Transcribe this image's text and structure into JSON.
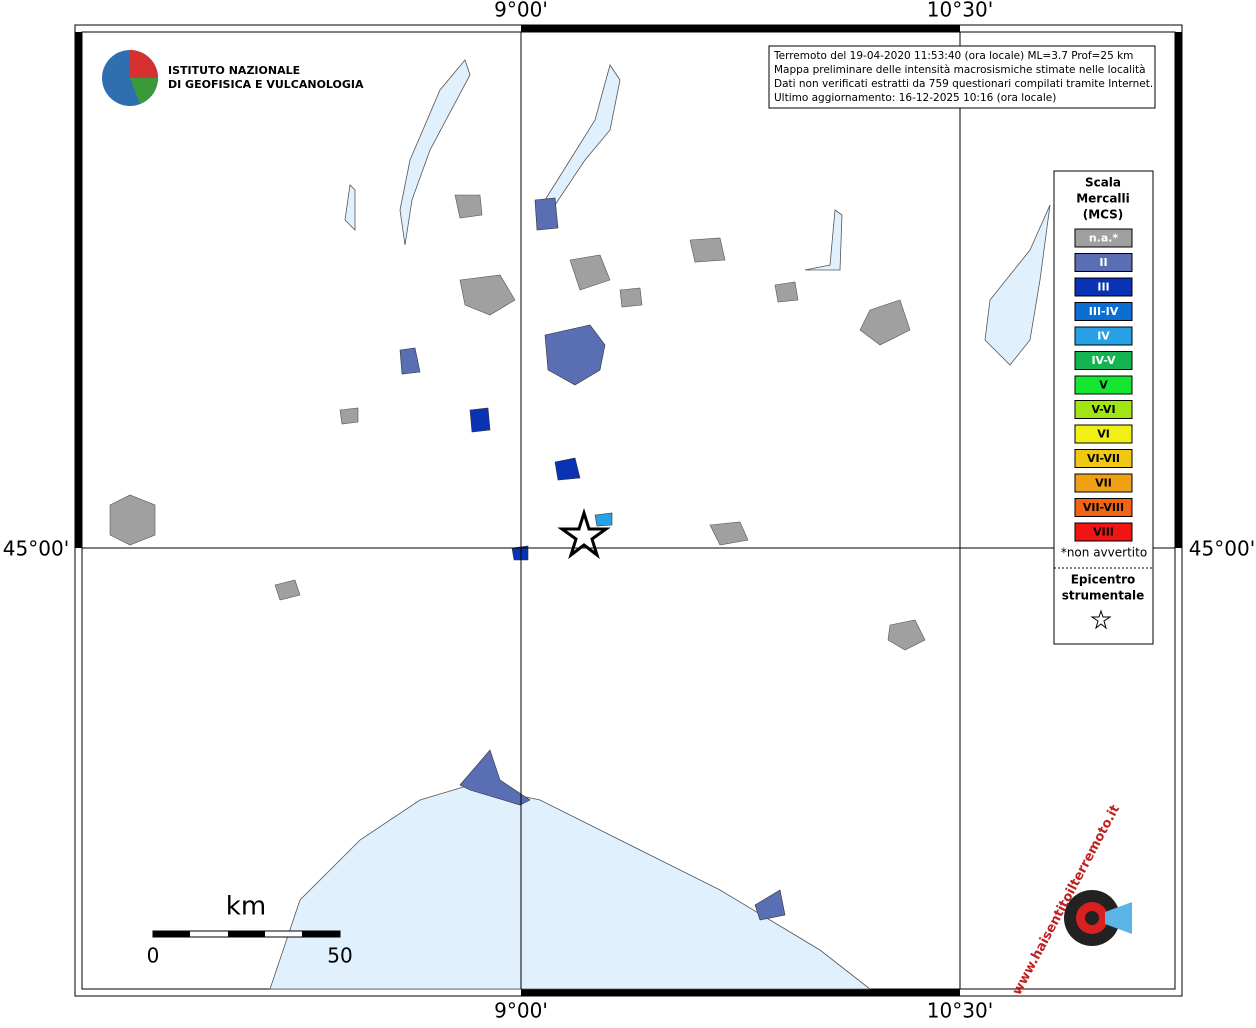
{
  "map": {
    "lon_labels": [
      "9°00'",
      "10°30'"
    ],
    "lat_label": "45°00'"
  },
  "logo": {
    "lines": [
      "ISTITUTO NAZIONALE",
      "DI GEOFISICA E VULCANOLOGIA"
    ]
  },
  "info": {
    "lines": [
      "Terremoto del 19-04-2020 11:53:40 (ora locale) ML=3.7 Prof=25 km",
      "Mappa preliminare delle intensità macrosismiche stimate nelle località",
      "Dati non verificati estratti da 759 questionari compilati tramite Internet.",
      "Ultimo aggiornamento: 16-12-2025 10:16 (ora locale)"
    ]
  },
  "legend": {
    "title": [
      "Scala",
      "Mercalli",
      "(MCS)"
    ],
    "levels": [
      {
        "label": "n.a.*",
        "color": "#a0a0a0"
      },
      {
        "label": "II",
        "color": "#5a6eb4"
      },
      {
        "label": "III",
        "color": "#0a32b4"
      },
      {
        "label": "III-IV",
        "color": "#0a6ed2"
      },
      {
        "label": "IV",
        "color": "#28a0e6"
      },
      {
        "label": "IV-V",
        "color": "#14b450"
      },
      {
        "label": "V",
        "color": "#14e632"
      },
      {
        "label": "V-VI",
        "color": "#a0e614"
      },
      {
        "label": "VI",
        "color": "#f0f014"
      },
      {
        "label": "VI-VII",
        "color": "#f0c814"
      },
      {
        "label": "VII",
        "color": "#f0a014"
      },
      {
        "label": "VII-VIII",
        "color": "#f06414"
      },
      {
        "label": "VIII",
        "color": "#f01414"
      }
    ],
    "note": "*non avvertito",
    "epicenter": [
      "Epicentro",
      "strumentale"
    ]
  },
  "scale": {
    "unit": "km",
    "ticks": [
      "0",
      "50"
    ]
  },
  "site_logo": "www.haisentitoilterremoto.it"
}
